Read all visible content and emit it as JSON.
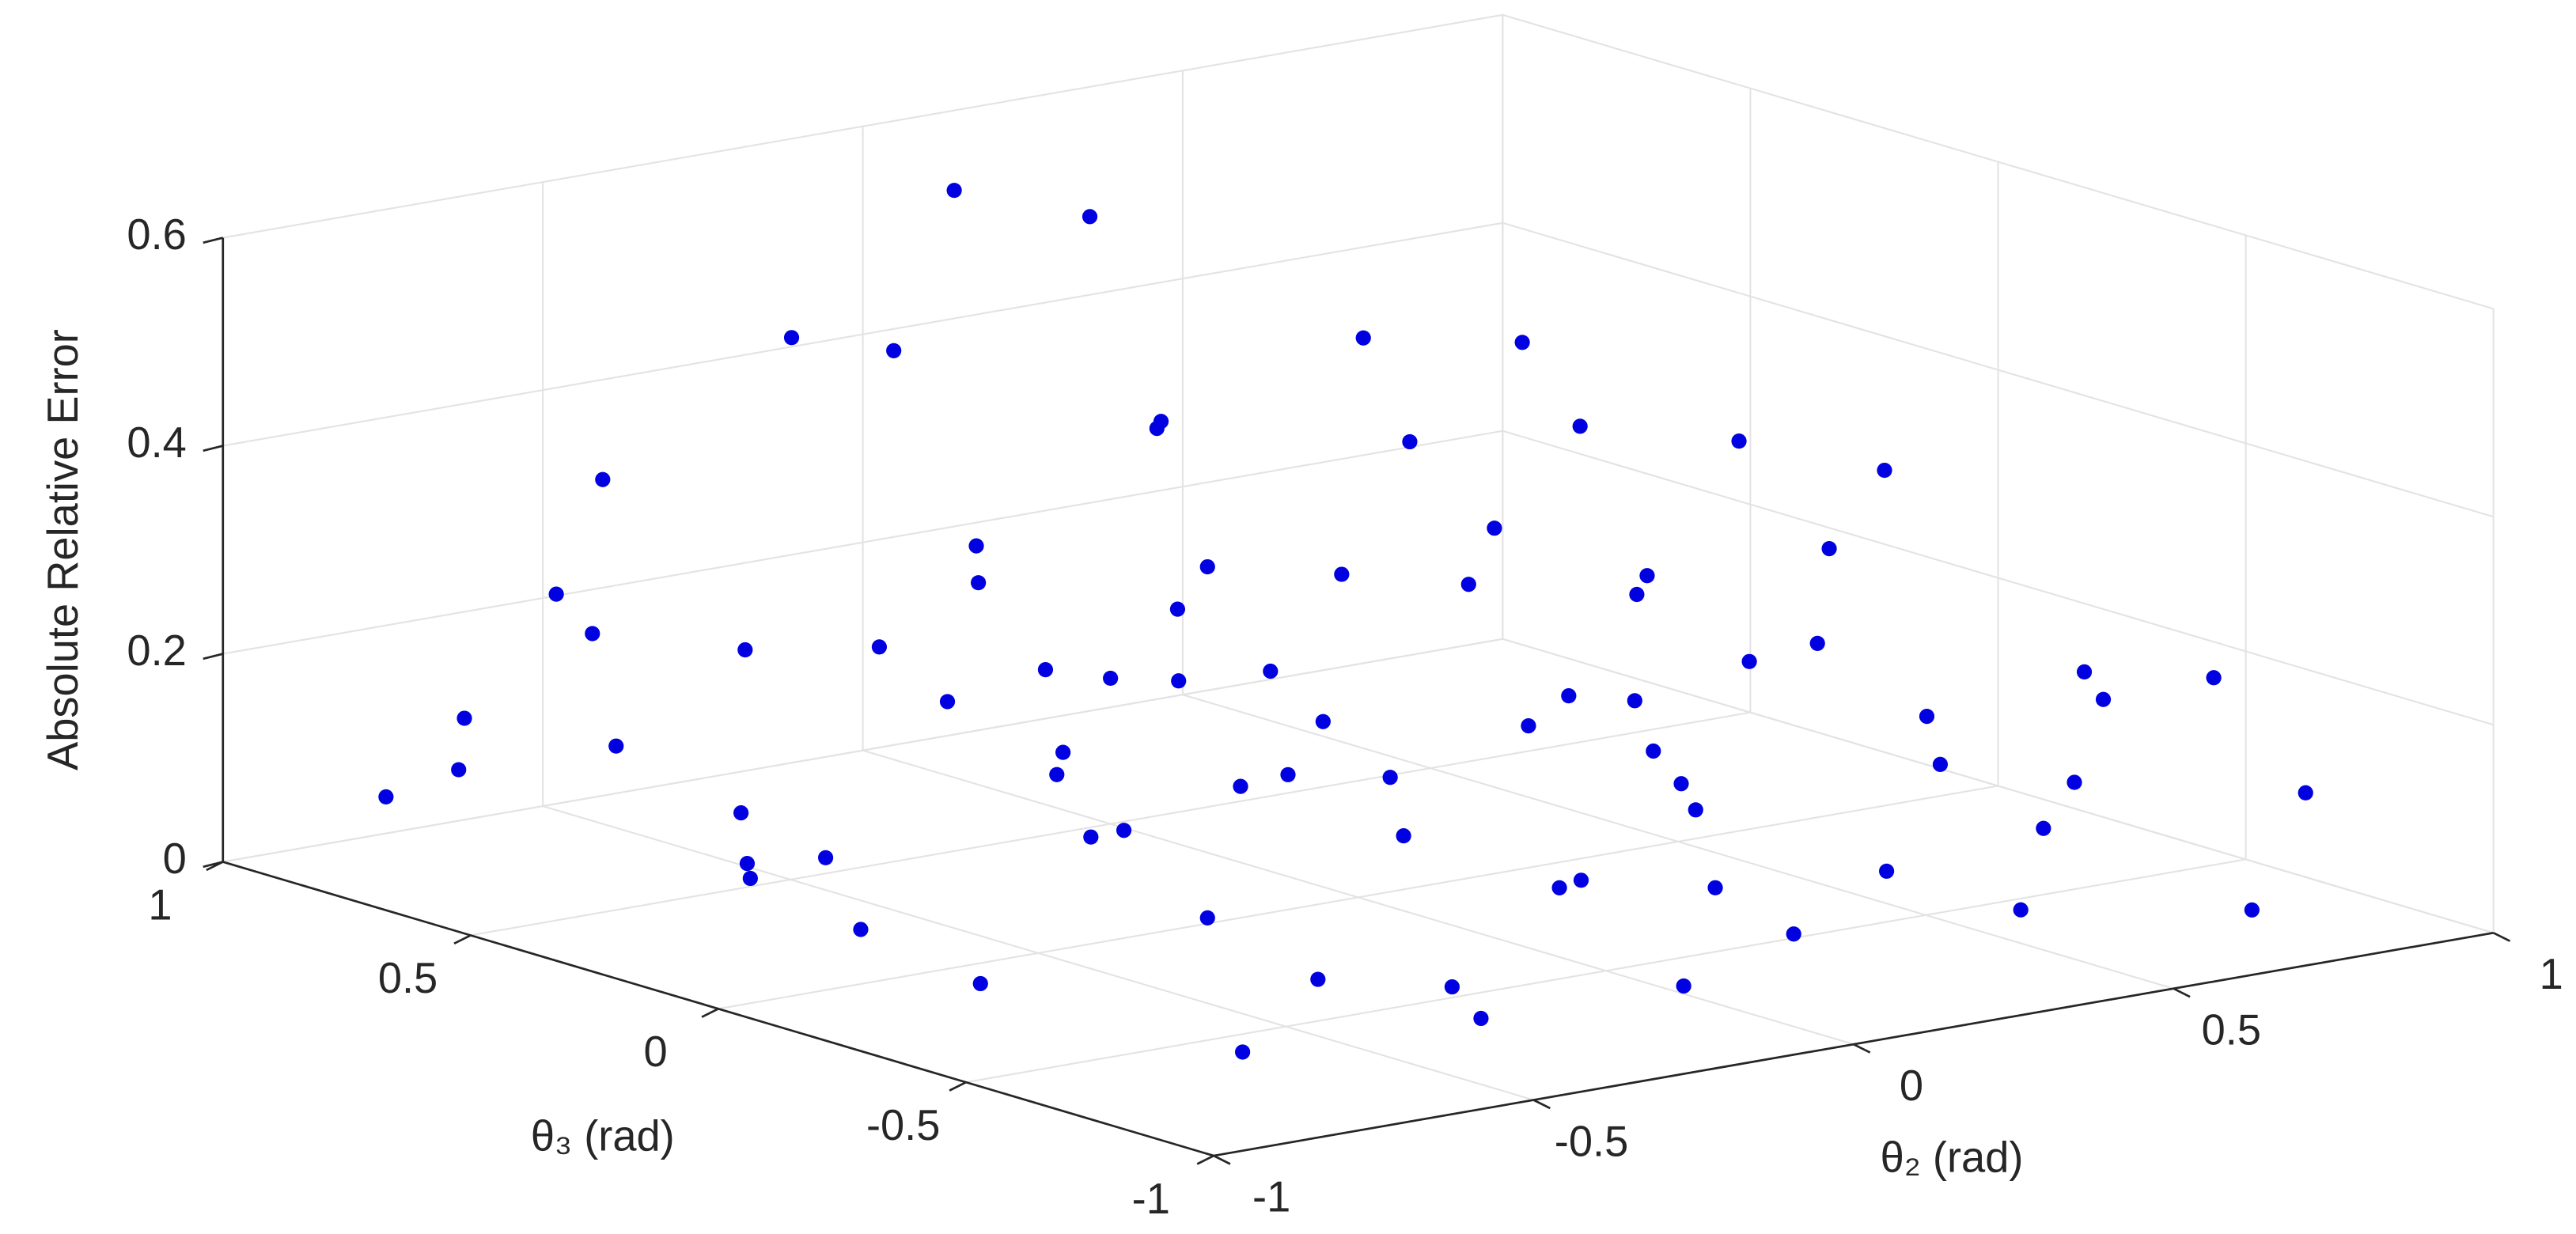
{
  "chart_data": {
    "type": "scatter3d",
    "xlabel": "θ₂ (rad)",
    "ylabel": "θ₃ (rad)",
    "zlabel": "Absolute Relative Error",
    "xlim": [
      -1,
      1
    ],
    "ylim": [
      -1,
      1
    ],
    "zlim": [
      0,
      0.6
    ],
    "xticks": [
      -1,
      -0.5,
      0,
      0.5,
      1
    ],
    "yticks": [
      -1,
      -0.5,
      0,
      0.5,
      1
    ],
    "zticks": [
      0,
      0.2,
      0.4,
      0.6
    ],
    "grid": true,
    "series": [
      {
        "color": "#0000e0",
        "x": [
          -0.9,
          -0.7,
          -0.5,
          -0.3,
          -0.1,
          0.1,
          0.3,
          0.5,
          0.7,
          0.9,
          -0.85,
          -0.6,
          -0.4,
          -0.2,
          0.0,
          0.2,
          0.4,
          0.6,
          0.8,
          0.95,
          -0.95,
          -0.7,
          -0.5,
          -0.25,
          0.05,
          0.25,
          0.45,
          0.65,
          0.85,
          -0.9,
          -0.65,
          -0.45,
          -0.2,
          0.0,
          0.2,
          0.4,
          0.6,
          0.8,
          0.95,
          -0.8,
          -0.55,
          -0.35,
          -0.1,
          0.1,
          0.3,
          0.5,
          0.7,
          0.9,
          -0.75,
          0.15,
          -0.15,
          0.35,
          0.75,
          0.55,
          -0.4,
          0.85,
          -0.05,
          0.45,
          -0.6,
          0.62,
          0.2,
          -0.3,
          0.05,
          -0.45,
          0.9,
          -0.98,
          -0.8,
          -0.3,
          0.1,
          0.35,
          0.7,
          -0.15,
          -0.7,
          0.25,
          -0.5,
          0.6,
          0.98,
          -0.25,
          0.15,
          0.5
        ],
        "y": [
          0.8,
          0.9,
          0.6,
          0.85,
          0.7,
          0.9,
          0.75,
          0.95,
          0.8,
          0.6,
          0.4,
          0.3,
          0.45,
          0.35,
          0.5,
          0.4,
          0.55,
          0.35,
          0.45,
          0.3,
          0.0,
          0.1,
          -0.05,
          0.15,
          0.0,
          0.1,
          -0.1,
          0.05,
          -0.05,
          -0.4,
          -0.3,
          -0.5,
          -0.35,
          -0.45,
          -0.3,
          -0.55,
          -0.4,
          -0.35,
          -0.5,
          -0.8,
          -0.9,
          -0.7,
          -0.85,
          -0.75,
          -0.95,
          -0.8,
          -0.9,
          -0.75,
          0.65,
          0.6,
          0.95,
          0.85,
          0.2,
          0.7,
          0.25,
          0.65,
          0.3,
          0.25,
          0.75,
          -0.15,
          0.8,
          0.55,
          0.88,
          0.05,
          0.1,
          0.55,
          0.2,
          -0.15,
          0.2,
          -0.2,
          -0.6,
          -0.6,
          -0.6,
          0.5,
          0.9,
          0.5,
          -0.2,
          -0.98,
          -0.15,
          0.05
        ],
        "z": [
          0.08,
          0.12,
          0.05,
          0.15,
          0.1,
          0.2,
          0.07,
          0.13,
          0.25,
          0.11,
          0.18,
          0.06,
          0.22,
          0.09,
          0.14,
          0.04,
          0.19,
          0.08,
          0.16,
          0.1,
          0.12,
          0.03,
          0.2,
          0.07,
          0.11,
          0.26,
          0.05,
          0.15,
          0.09,
          0.07,
          0.17,
          0.04,
          0.13,
          0.08,
          0.21,
          0.06,
          0.12,
          0.03,
          0.18,
          0.05,
          0.1,
          0.02,
          0.14,
          0.06,
          0.09,
          0.17,
          0.04,
          0.11,
          0.28,
          0.35,
          0.42,
          0.3,
          0.33,
          0.38,
          0.31,
          0.27,
          0.24,
          0.45,
          0.36,
          0.29,
          0.52,
          0.48,
          0.55,
          0.26,
          0.3,
          0.15,
          0.09,
          0.16,
          0.13,
          0.1,
          0.2,
          0.11,
          0.14,
          0.12,
          0.18,
          0.22,
          0.14,
          0.08,
          0.17,
          0.08
        ]
      }
    ]
  }
}
